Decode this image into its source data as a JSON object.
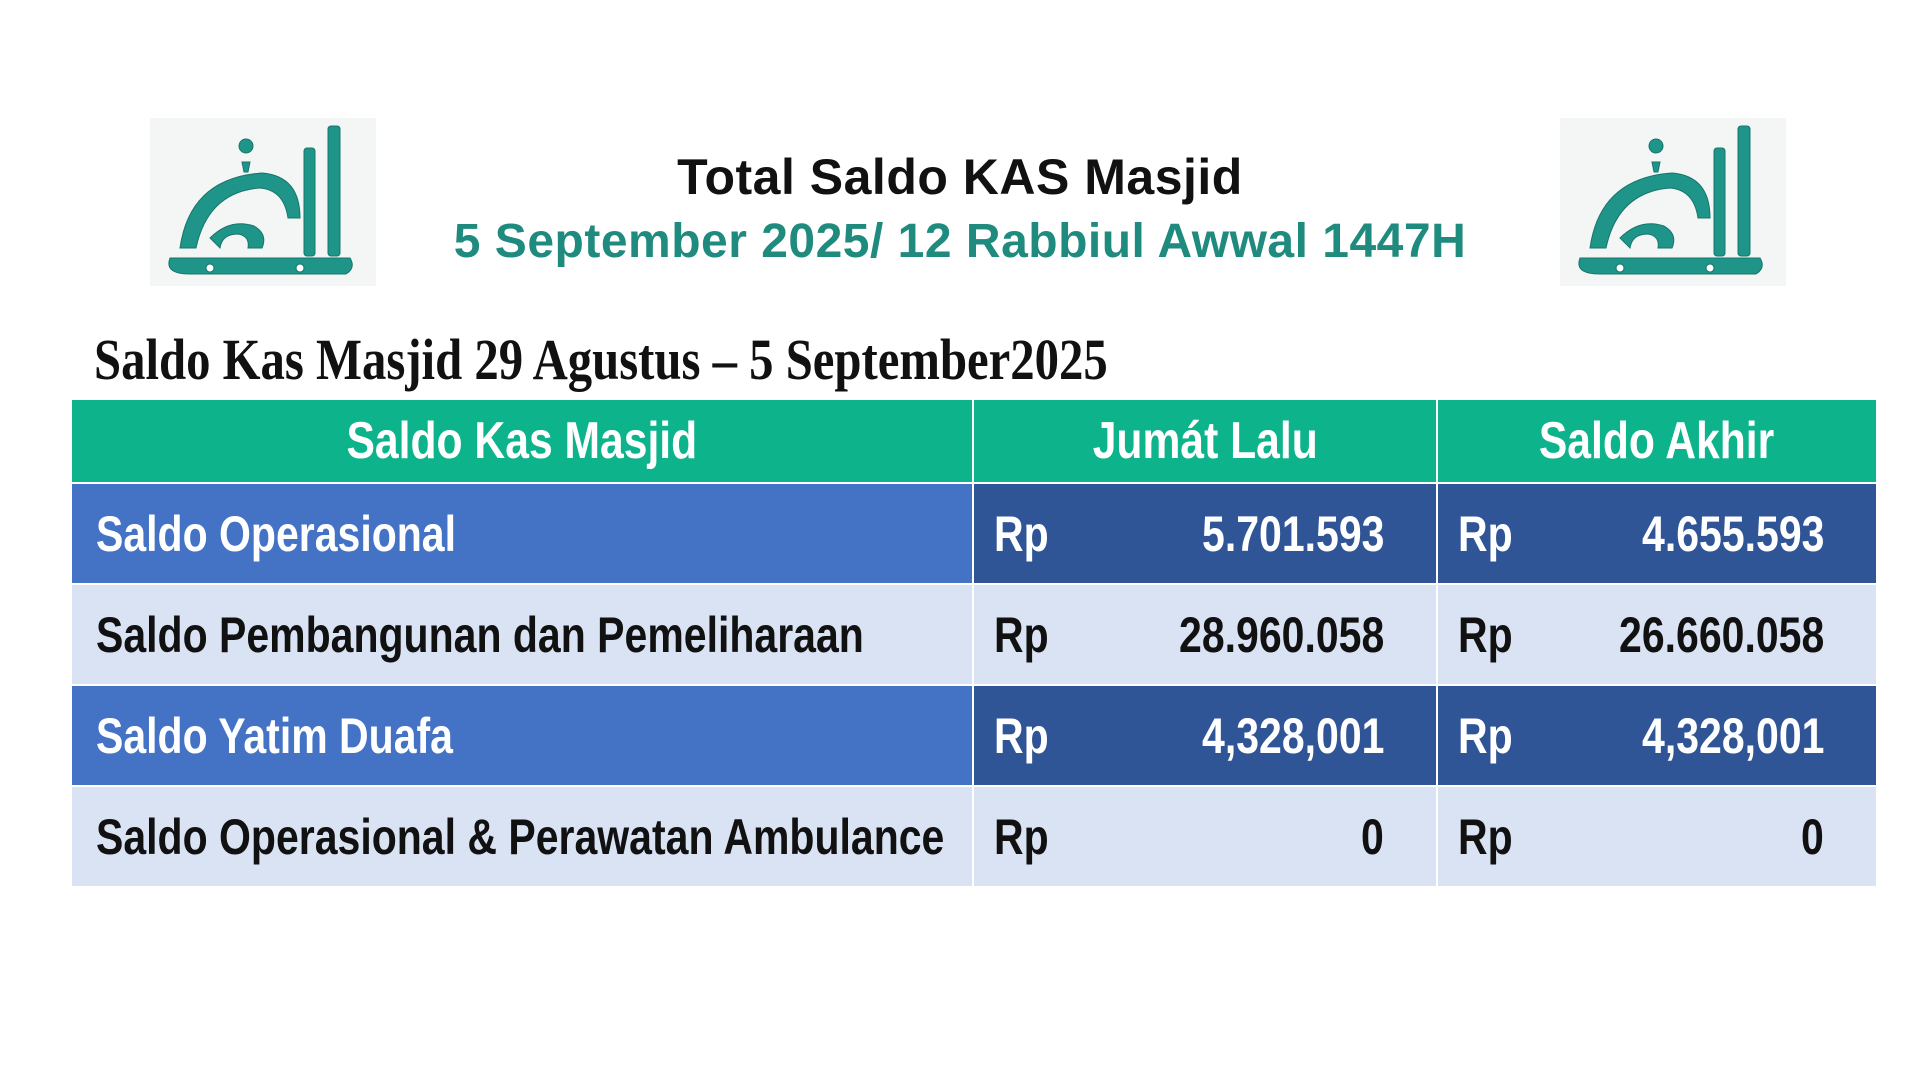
{
  "header": {
    "title": "Total Saldo KAS Masjid",
    "subtitle": "5 September 2025/ 12 Rabbiul Awwal 1447H"
  },
  "logo": {
    "icon": "al-barakah-calligraphy-logo",
    "color": "#1f9488"
  },
  "section_title": "Saldo Kas Masjid 29 Agustus – 5 September2025",
  "table": {
    "headers": [
      "Saldo Kas Masjid",
      "Jumát Lalu",
      "Saldo  Akhir"
    ],
    "rows": [
      {
        "name": "Saldo Operasional",
        "prev_currency": "Rp",
        "prev": "5.701.593",
        "final_currency": "Rp",
        "final": "4.655.593"
      },
      {
        "name": "Saldo Pembangunan dan Pemeliharaan",
        "prev_currency": "Rp",
        "prev": "28.960.058",
        "final_currency": "Rp",
        "final": "26.660.058"
      },
      {
        "name": "Saldo Yatim Duafa",
        "prev_currency": "Rp",
        "prev": "4,328,001",
        "final_currency": "Rp",
        "final": "4,328,001"
      },
      {
        "name": "Saldo Operasional & Perawatan Ambulance",
        "prev_currency": "Rp",
        "prev": "0",
        "final_currency": "Rp",
        "final": "0"
      }
    ]
  },
  "colors": {
    "header_green": "#0db38a",
    "row_dark_label": "#4472c4",
    "row_dark_value": "#2f5597",
    "row_light": "#dae3f3",
    "subtitle_teal": "#1f8a7e"
  }
}
